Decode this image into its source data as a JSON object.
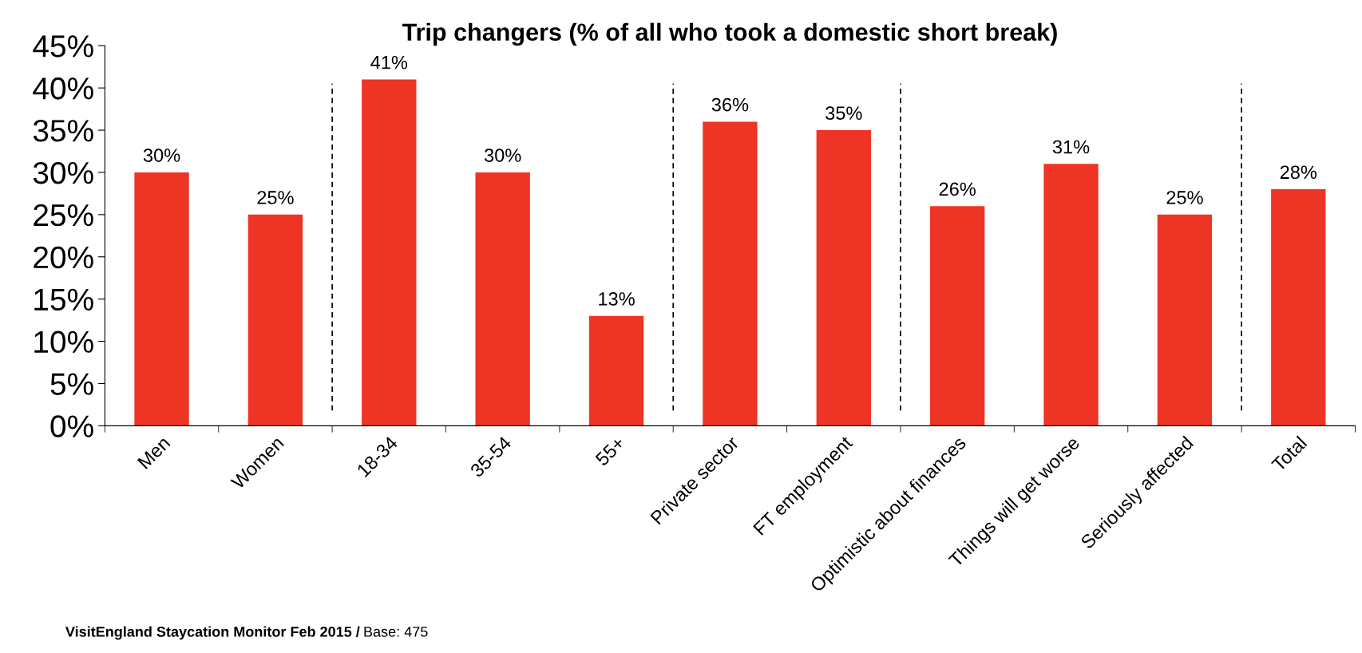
{
  "chart_data": {
    "type": "bar",
    "title": "Trip changers (% of all who took a domestic short break)",
    "categories": [
      "Men",
      "Women",
      "18-34",
      "35-54",
      "55+",
      "Private sector",
      "FT employment",
      "Optimistic about finances",
      "Things will get worse",
      "Seriously affected",
      "Total"
    ],
    "values": [
      30,
      25,
      41,
      30,
      13,
      36,
      35,
      26,
      31,
      25,
      28
    ],
    "value_labels": [
      "30%",
      "25%",
      "41%",
      "30%",
      "13%",
      "36%",
      "35%",
      "26%",
      "31%",
      "25%",
      "28%"
    ],
    "color": "#ee3424",
    "ylim": [
      0,
      45
    ],
    "yticks": [
      {
        "value": 0,
        "label": "0%"
      },
      {
        "value": 5,
        "label": "5%"
      },
      {
        "value": 10,
        "label": "10%"
      },
      {
        "value": 15,
        "label": "15%"
      },
      {
        "value": 20,
        "label": "20%"
      },
      {
        "value": 25,
        "label": "25%"
      },
      {
        "value": 30,
        "label": "30%"
      },
      {
        "value": 35,
        "label": "35%"
      },
      {
        "value": 40,
        "label": "40%"
      },
      {
        "value": 45,
        "label": "45%"
      }
    ],
    "annotations": [
      "VisitEngland Staycation Monitor Feb 2015 /",
      "Base: 475"
    ],
    "grid": false,
    "legend": false
  }
}
